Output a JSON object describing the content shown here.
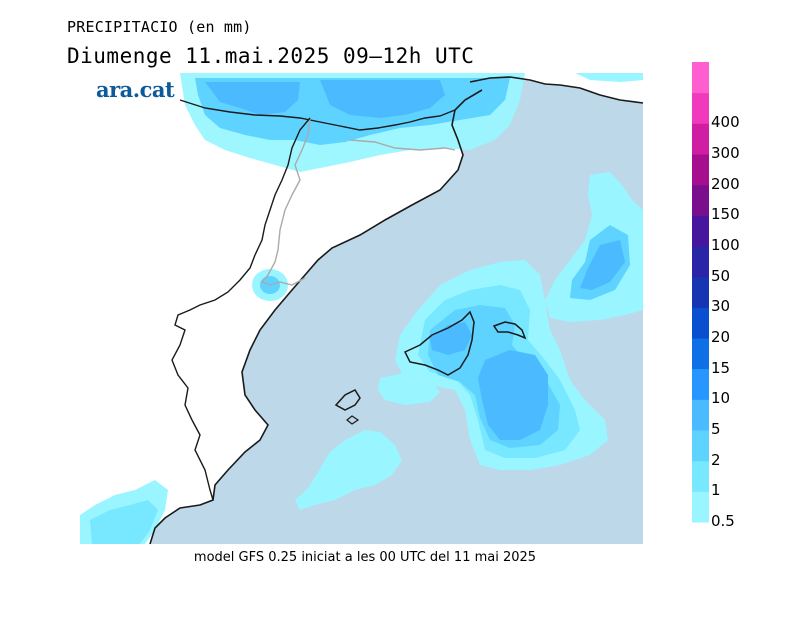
{
  "header": {
    "title": "PRECIPITACIO (en mm)",
    "subtitle": "Diumenge  11.mai.2025 09–12h UTC"
  },
  "brand": {
    "logo_text": "ara.cat"
  },
  "footer": {
    "caption": "model GFS 0.25 iniciat a les 00 UTC del 11 mai 2025"
  },
  "map": {
    "sea_color": "#bdd8e9",
    "land_color": "#ffffff",
    "coast_color": "#1a1a1a",
    "border_color": "#aaaaaa"
  },
  "legend": {
    "items": [
      {
        "label": "0.5",
        "color": "#99f5ff"
      },
      {
        "label": "1",
        "color": "#77e8ff"
      },
      {
        "label": "2",
        "color": "#5fd3ff"
      },
      {
        "label": "5",
        "color": "#4cbaff"
      },
      {
        "label": "10",
        "color": "#2796ff"
      },
      {
        "label": "15",
        "color": "#0f6fe6"
      },
      {
        "label": "20",
        "color": "#0a4fd0"
      },
      {
        "label": "30",
        "color": "#1535b3"
      },
      {
        "label": "50",
        "color": "#2a25a6"
      },
      {
        "label": "100",
        "color": "#46169e"
      },
      {
        "label": "150",
        "color": "#7a0f8d"
      },
      {
        "label": "200",
        "color": "#a50f8f"
      },
      {
        "label": "300",
        "color": "#cf1ea3"
      },
      {
        "label": "400",
        "color": "#f039bd"
      },
      {
        "label": "",
        "color": "#ff5ed0"
      }
    ]
  }
}
